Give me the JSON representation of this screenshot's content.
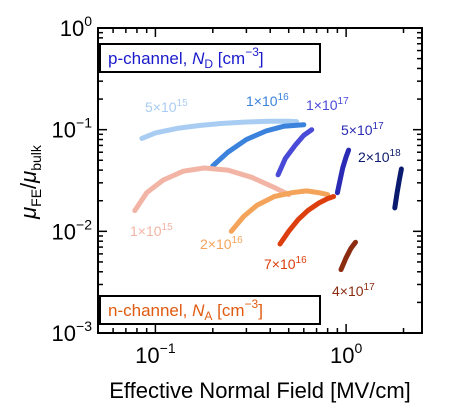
{
  "chart_data": {
    "type": "line",
    "title": "",
    "xlabel": "Effective Normal Field [MV/cm]",
    "ylabel": "μFE/μbulk",
    "xscale": "log",
    "yscale": "log",
    "xlim": [
      0.05,
      2.5
    ],
    "ylim": [
      0.001,
      1
    ],
    "x_ticks": [
      {
        "value": 0.1,
        "base": "10",
        "exp": "−1"
      },
      {
        "value": 1,
        "base": "10",
        "exp": "0"
      }
    ],
    "y_ticks": [
      {
        "value": 0.001,
        "base": "10",
        "exp": "−3"
      },
      {
        "value": 0.01,
        "base": "10",
        "exp": "−2"
      },
      {
        "value": 0.1,
        "base": "10",
        "exp": "−1"
      },
      {
        "value": 1,
        "base": "10",
        "exp": "0"
      }
    ],
    "grid": false,
    "legend_boxes": [
      {
        "id": "p",
        "text": "p-channel, ",
        "italic": "N",
        "sub": "D",
        "unit": " [cm",
        "unit_exp": "−3",
        "unit_end": "]",
        "color": "#1a1acc",
        "position": "top-left"
      },
      {
        "id": "n",
        "text": "n-channel, ",
        "italic": "N",
        "sub": "A",
        "unit": " [cm",
        "unit_exp": "−3",
        "unit_end": "]",
        "color": "#e05a10",
        "position": "bottom-left"
      }
    ],
    "series": [
      {
        "channel": "p",
        "label": "5×10",
        "exp": "15",
        "color": "#a9cdf2",
        "x": [
          0.085,
          0.1,
          0.13,
          0.17,
          0.22,
          0.3,
          0.4,
          0.5,
          0.55
        ],
        "y": [
          0.082,
          0.093,
          0.103,
          0.11,
          0.115,
          0.119,
          0.121,
          0.121,
          0.12
        ]
      },
      {
        "channel": "p",
        "label": "1×10",
        "exp": "16",
        "color": "#3a82dc",
        "x": [
          0.2,
          0.24,
          0.3,
          0.38,
          0.47,
          0.6
        ],
        "y": [
          0.044,
          0.06,
          0.08,
          0.097,
          0.108,
          0.112
        ]
      },
      {
        "channel": "p",
        "label": "1×10",
        "exp": "17",
        "color": "#4a4ad8",
        "x": [
          0.44,
          0.48,
          0.54,
          0.6,
          0.66
        ],
        "y": [
          0.036,
          0.052,
          0.07,
          0.088,
          0.1
        ]
      },
      {
        "channel": "p",
        "label": "5×10",
        "exp": "17",
        "color": "#2a2ab4",
        "x": [
          0.9,
          0.93,
          0.96,
          1.0,
          1.03
        ],
        "y": [
          0.024,
          0.032,
          0.042,
          0.054,
          0.063
        ]
      },
      {
        "channel": "p",
        "label": "2×10",
        "exp": "18",
        "color": "#0a1a6e",
        "x": [
          1.8,
          1.85,
          1.9,
          1.95
        ],
        "y": [
          0.017,
          0.024,
          0.032,
          0.041
        ]
      },
      {
        "channel": "n",
        "label": "1×10",
        "exp": "15",
        "color": "#f2b4a4",
        "x": [
          0.078,
          0.09,
          0.11,
          0.14,
          0.18,
          0.24,
          0.32,
          0.42,
          0.5
        ],
        "y": [
          0.016,
          0.024,
          0.032,
          0.039,
          0.042,
          0.04,
          0.034,
          0.027,
          0.023
        ]
      },
      {
        "channel": "n",
        "label": "2×10",
        "exp": "16",
        "color": "#f4a45a",
        "x": [
          0.25,
          0.29,
          0.34,
          0.42,
          0.52,
          0.62,
          0.72,
          0.8
        ],
        "y": [
          0.01,
          0.014,
          0.018,
          0.022,
          0.024,
          0.025,
          0.024,
          0.023
        ]
      },
      {
        "channel": "n",
        "label": "7×10",
        "exp": "16",
        "color": "#dd3e0e",
        "x": [
          0.45,
          0.5,
          0.56,
          0.63,
          0.72,
          0.8,
          0.86
        ],
        "y": [
          0.0075,
          0.01,
          0.013,
          0.016,
          0.019,
          0.021,
          0.022
        ]
      },
      {
        "channel": "n",
        "label": "4×10",
        "exp": "17",
        "color": "#8b2c10",
        "x": [
          0.94,
          1.0,
          1.06,
          1.12
        ],
        "y": [
          0.0042,
          0.0055,
          0.0068,
          0.0078
        ]
      }
    ]
  }
}
